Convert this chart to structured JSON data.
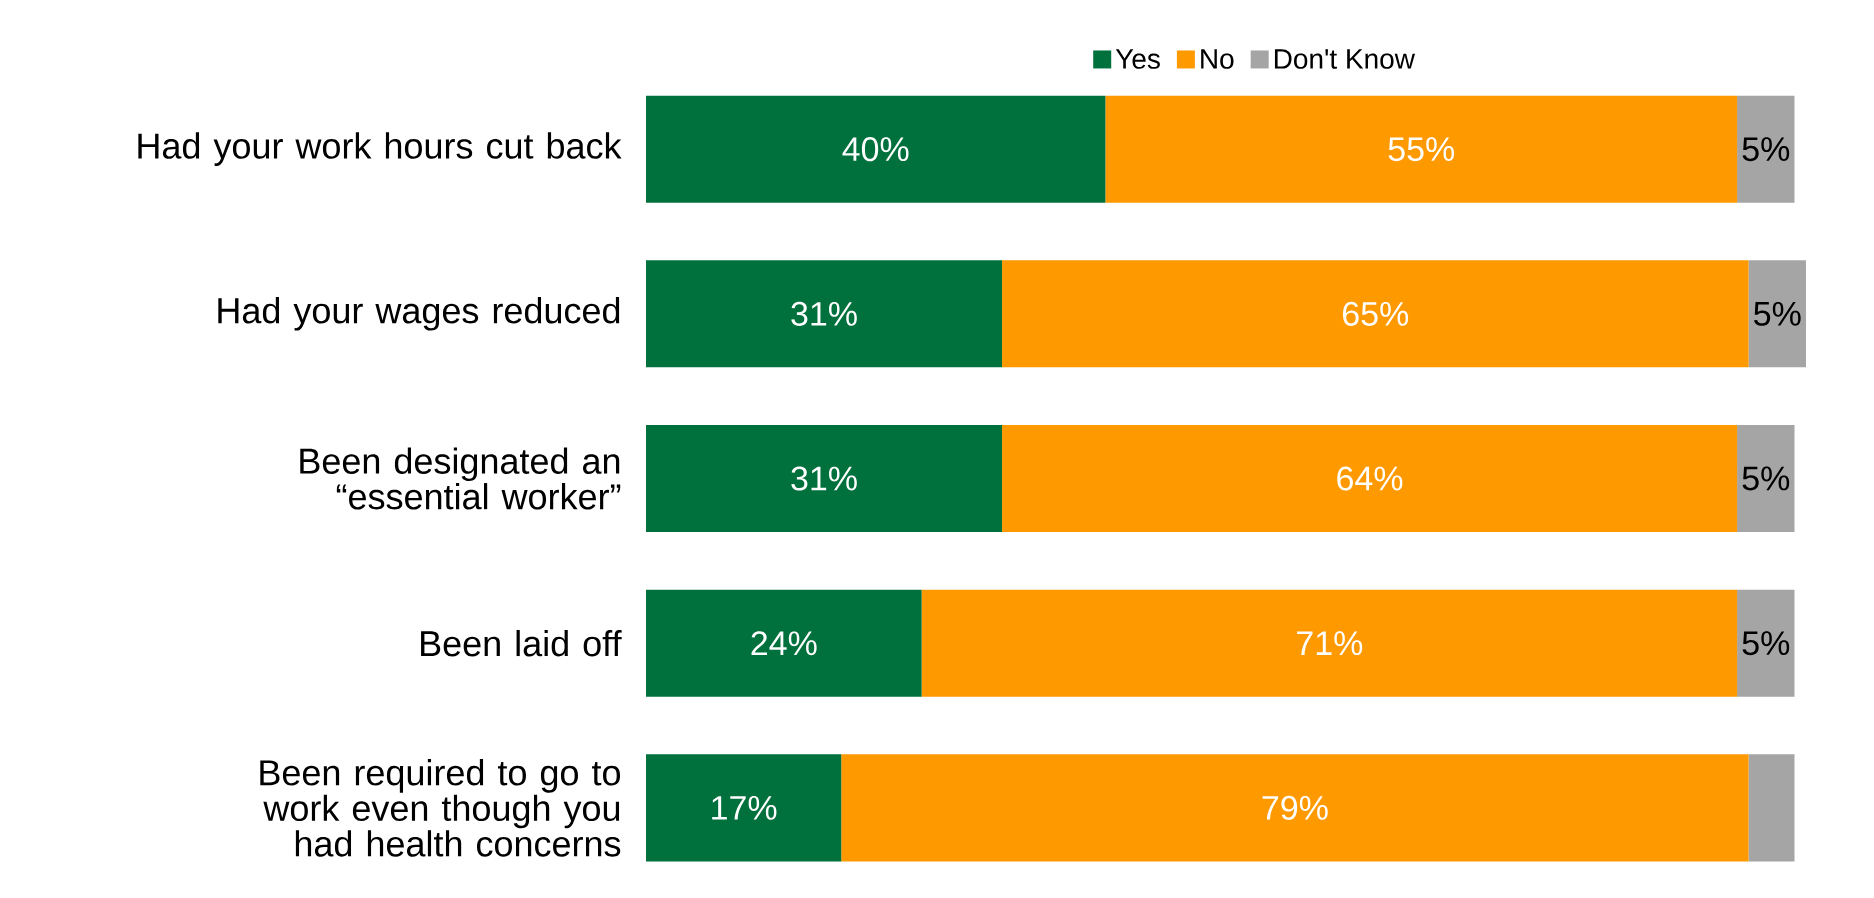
{
  "chart_data": {
    "type": "bar",
    "orientation": "horizontal",
    "stacked": true,
    "legend": "top",
    "categories": [
      "Had your work hours cut back",
      "Had your wages reduced",
      "Been designated an “essential worker”",
      "Been laid off",
      "Been required to go to work even though you had health concerns"
    ],
    "series": [
      {
        "name": "Yes",
        "color": "#00703c",
        "values": [
          40,
          31,
          31,
          24,
          17
        ],
        "value_labels": [
          "40%",
          "31%",
          "31%",
          "24%",
          "17%"
        ]
      },
      {
        "name": "No",
        "color": "#ff9900",
        "values": [
          55,
          65,
          64,
          71,
          79
        ],
        "value_labels": [
          "55%",
          "65%",
          "64%",
          "71%",
          "79%"
        ]
      },
      {
        "name": "Don't Know",
        "color": "#a5a5a5",
        "values": [
          5,
          5,
          5,
          5,
          4
        ],
        "value_labels": [
          "5%",
          "5%",
          "5%",
          "5%",
          null
        ]
      }
    ]
  }
}
